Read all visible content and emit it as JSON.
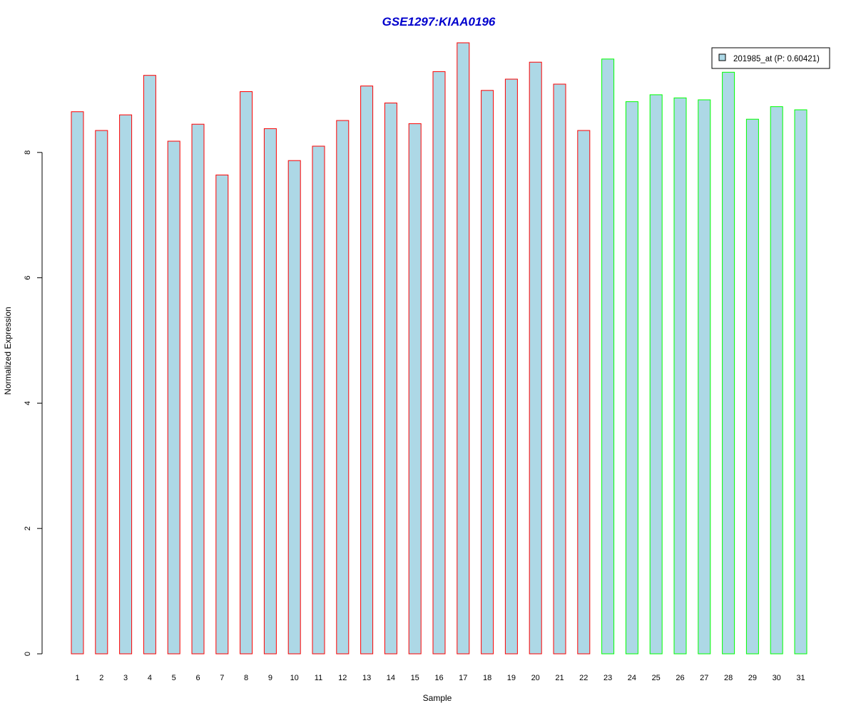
{
  "chart_data": {
    "type": "bar",
    "title": "GSE1297:KIAA0196",
    "xlabel": "Sample",
    "ylabel": "Normalized Expression",
    "ylim": [
      0,
      9.8
    ],
    "yticks": [
      "0",
      "2",
      "4",
      "6",
      "8"
    ],
    "grid": false,
    "legend_position": "top-right",
    "categories": [
      "1",
      "2",
      "3",
      "4",
      "5",
      "6",
      "7",
      "8",
      "9",
      "10",
      "11",
      "12",
      "13",
      "14",
      "15",
      "16",
      "17",
      "18",
      "19",
      "20",
      "21",
      "22",
      "23",
      "24",
      "25",
      "26",
      "27",
      "28",
      "29",
      "30",
      "31"
    ],
    "series": [
      {
        "name": "201985_at (P: 0.60421)",
        "values": [
          8.65,
          8.35,
          8.6,
          9.23,
          8.18,
          8.45,
          7.64,
          8.97,
          8.38,
          7.87,
          8.1,
          8.51,
          9.06,
          8.79,
          8.46,
          9.29,
          9.75,
          8.99,
          9.17,
          9.44,
          9.09,
          8.35,
          9.49,
          8.81,
          8.92,
          8.87,
          8.84,
          9.28,
          8.53,
          8.73,
          8.68
        ]
      }
    ],
    "groups": [
      "red",
      "red",
      "red",
      "red",
      "red",
      "red",
      "red",
      "red",
      "red",
      "red",
      "red",
      "red",
      "red",
      "red",
      "red",
      "red",
      "red",
      "red",
      "red",
      "red",
      "red",
      "red",
      "green",
      "green",
      "green",
      "green",
      "green",
      "green",
      "green",
      "green",
      "green"
    ]
  },
  "colors": {
    "bar_fill": "#ADD8E6",
    "group_red": "#FF0000",
    "group_green": "#00FF00",
    "title": "#0000CD"
  }
}
